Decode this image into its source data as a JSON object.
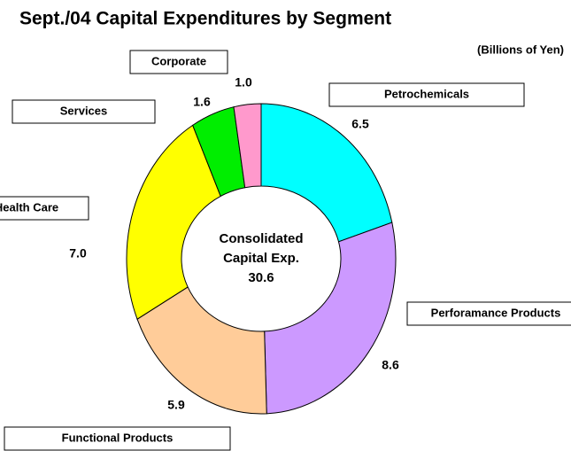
{
  "chart_data": {
    "type": "donut",
    "title": "Sept./04 Capital Expenditures by Segment",
    "subtitle": "(Billions of Yen)",
    "center_label": [
      "Consolidated",
      "Capital Exp.",
      "30.6"
    ],
    "categories": [
      "Petrochemicals",
      "Perforamance Products",
      "Functional Products",
      "Health Care",
      "Services",
      "Corporate"
    ],
    "values": [
      6.5,
      8.6,
      5.9,
      7.0,
      1.6,
      1.0
    ],
    "value_labels": [
      "6.5",
      "8.6",
      "5.9",
      "7.0",
      "1.6",
      "1.0"
    ],
    "colors": [
      "#00ffff",
      "#cc99ff",
      "#ffcc99",
      "#ffff00",
      "#00ee00",
      "#ff99cc"
    ]
  }
}
